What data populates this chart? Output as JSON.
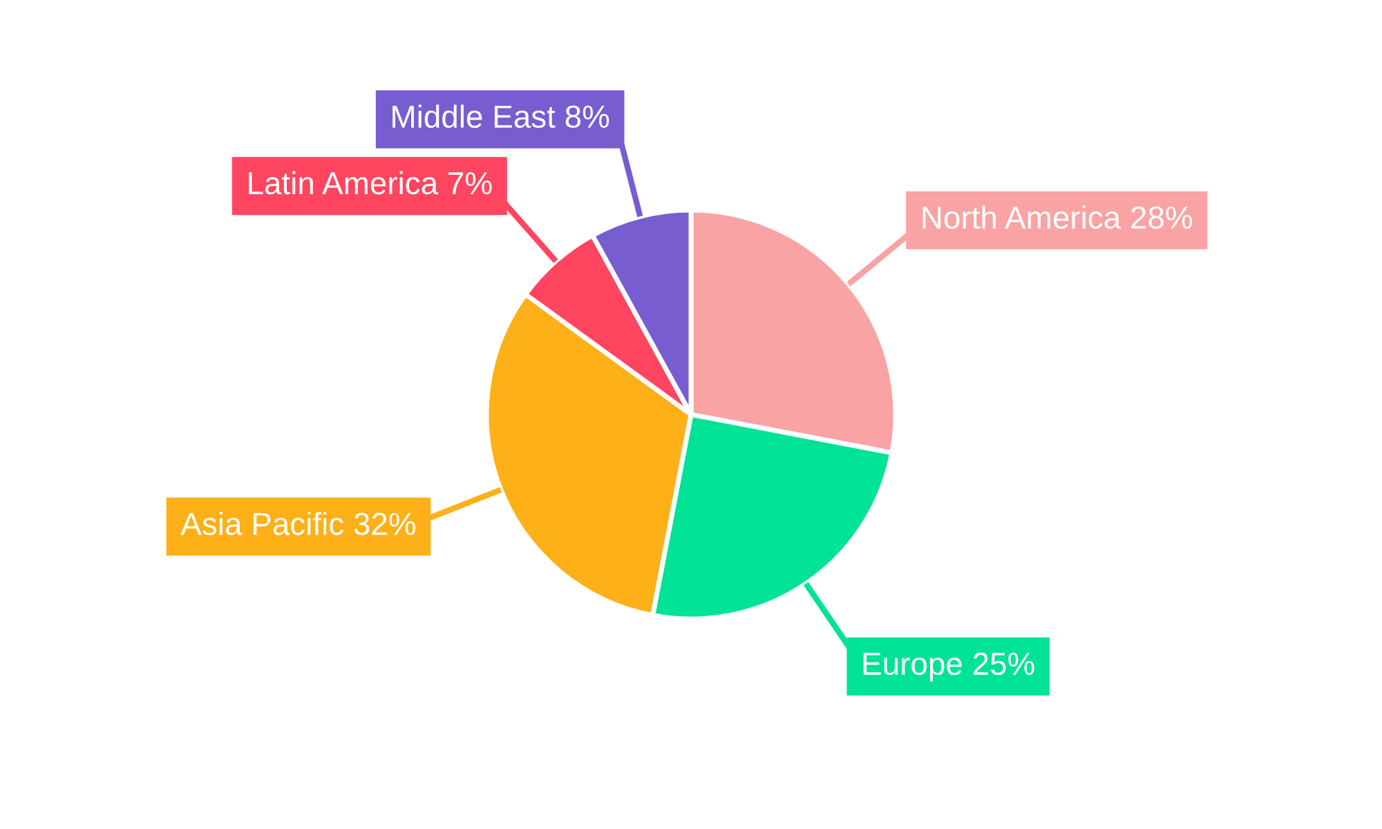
{
  "chart_data": {
    "type": "pie",
    "categories": [
      "North America",
      "Europe",
      "Asia Pacific",
      "Latin America",
      "Middle East"
    ],
    "values": [
      28,
      25,
      32,
      7,
      8
    ],
    "colors": [
      "#f9a3a4",
      "#00e396",
      "#feb019",
      "#ff4560",
      "#775dd0"
    ],
    "value_labels": [
      "28%",
      "25%",
      "32%",
      "7%",
      "8%"
    ]
  }
}
